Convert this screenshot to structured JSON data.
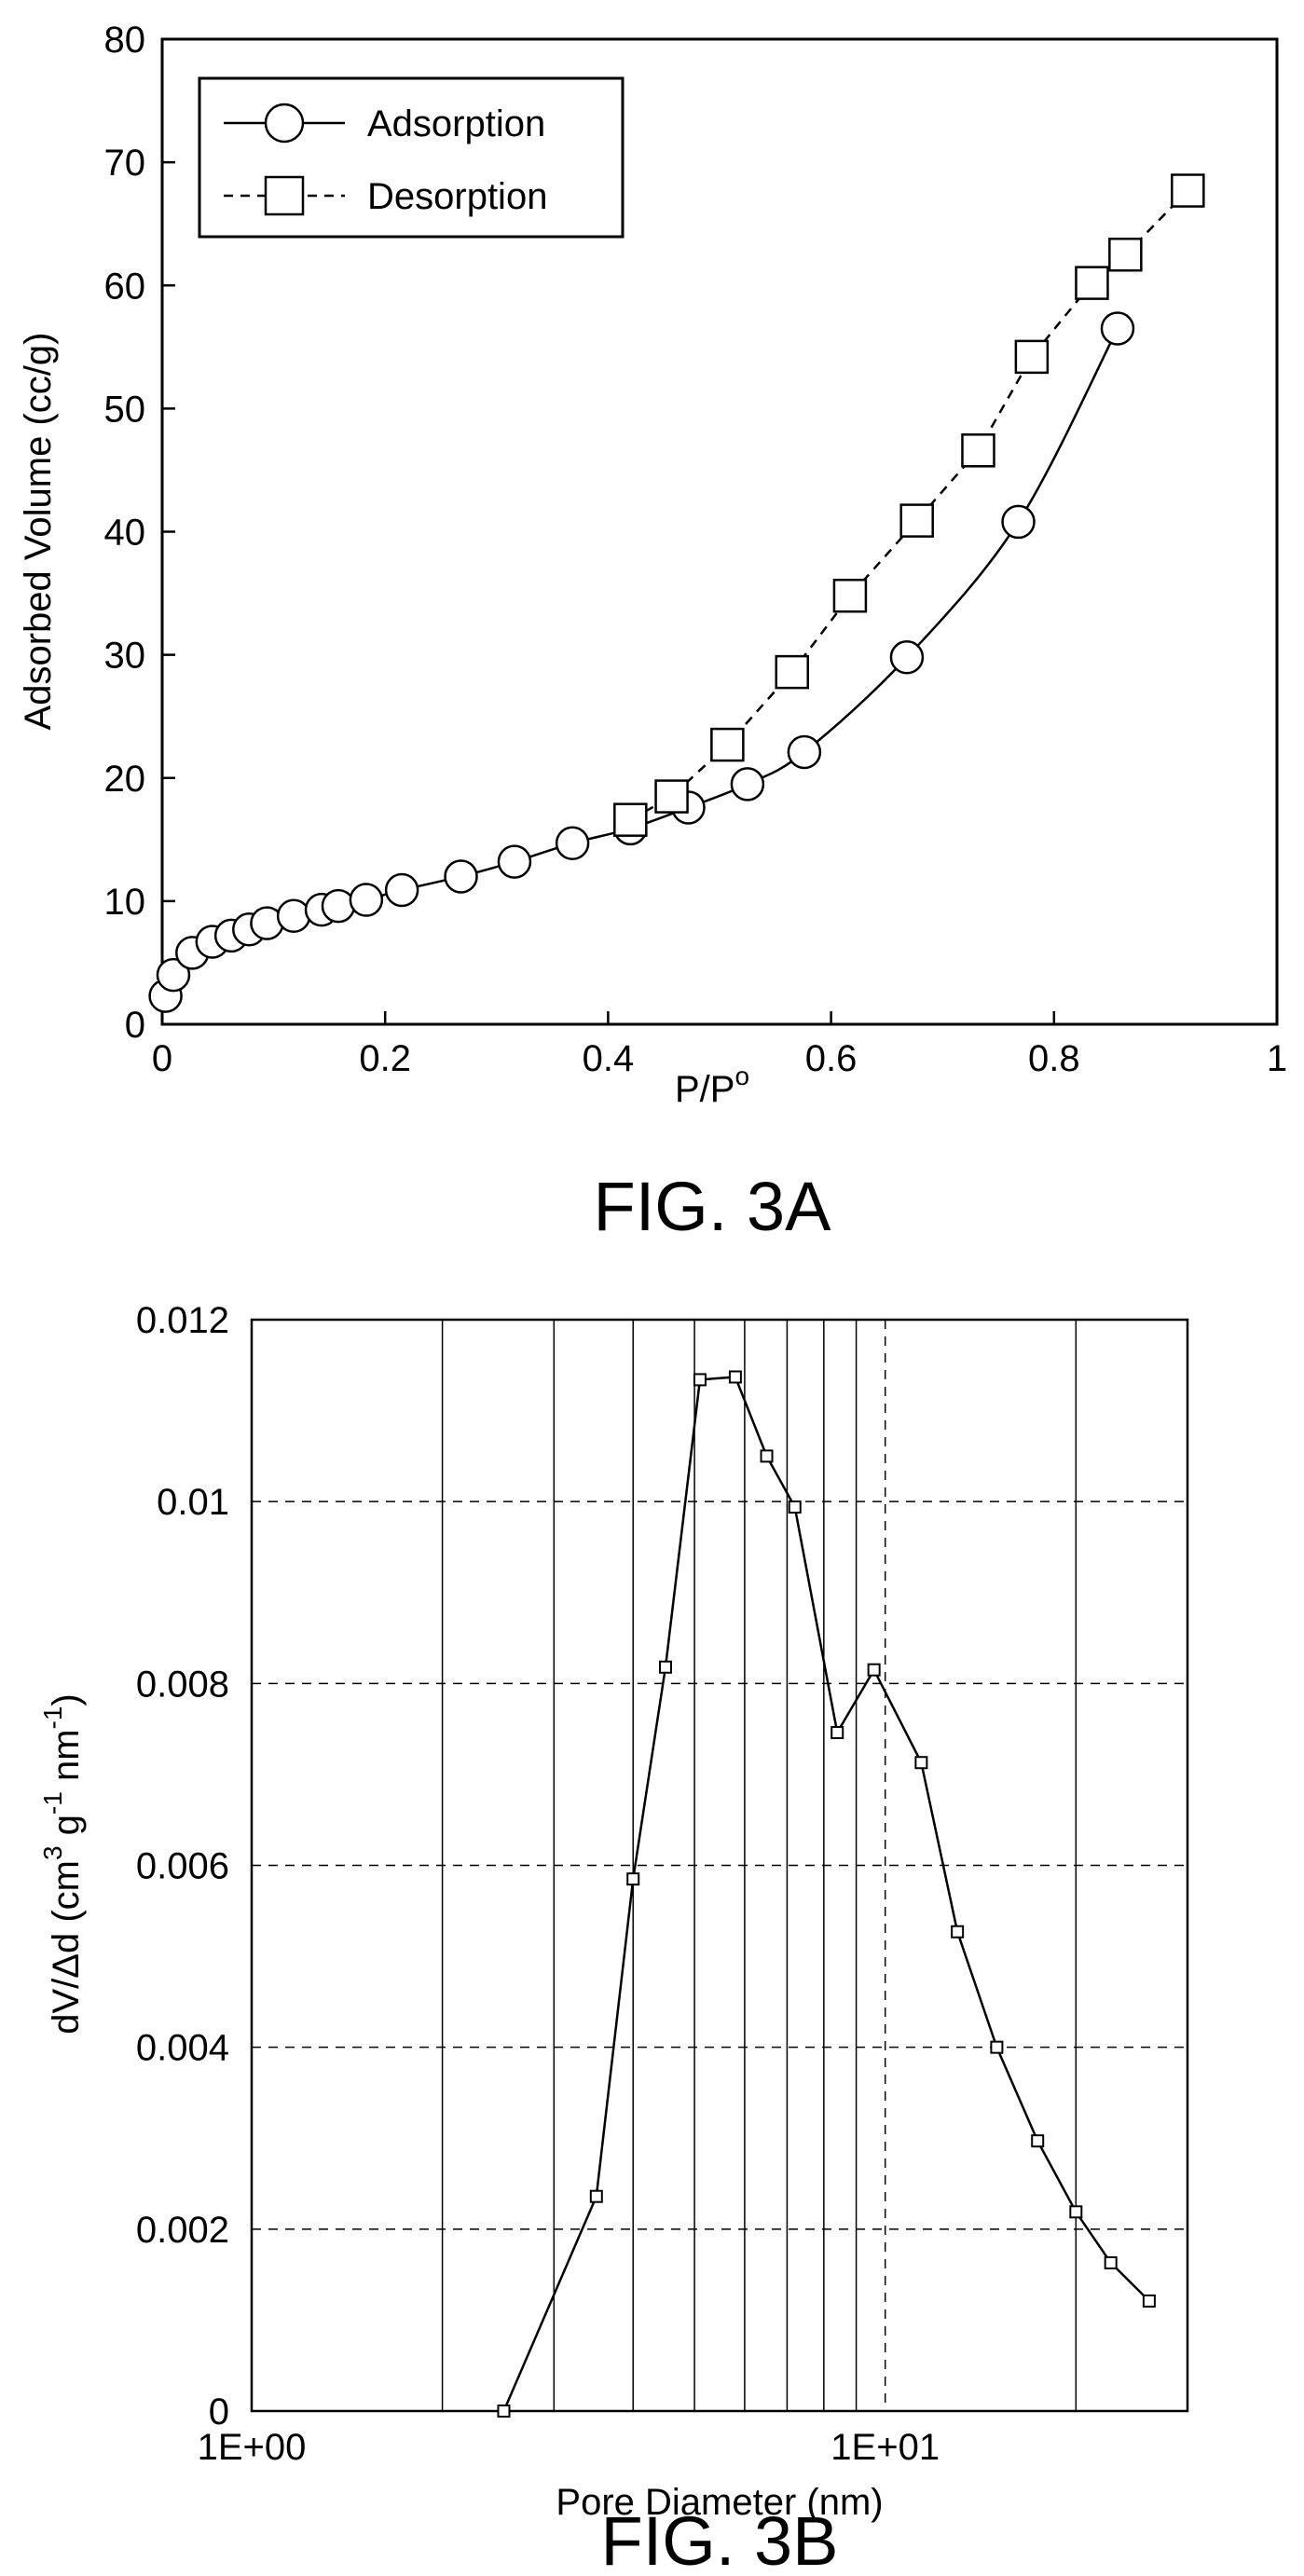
{
  "chart_data": [
    {
      "type": "scatter",
      "figure_label": "FIG. 3A",
      "xlabel_main": "P/P",
      "xlabel_sup": "o",
      "ylabel": "Adsorbed Volume (cc/g)",
      "xlim": [
        0,
        1
      ],
      "ylim": [
        0,
        80
      ],
      "xticks": [
        0,
        0.2,
        0.4,
        0.6,
        0.8,
        1
      ],
      "xtick_labels": [
        "0",
        "0.2",
        "0.4",
        "0.6",
        "0.8",
        "1"
      ],
      "yticks": [
        0,
        10,
        20,
        30,
        40,
        50,
        60,
        70,
        80
      ],
      "ytick_labels": [
        "0",
        "10",
        "20",
        "30",
        "40",
        "50",
        "60",
        "70",
        "80"
      ],
      "grid": false,
      "legend_position": "top-left",
      "series": [
        {
          "name": "Adsorption",
          "marker": "circle",
          "line": "solid",
          "x": [
            0.003,
            0.01,
            0.027,
            0.045,
            0.062,
            0.078,
            0.094,
            0.118,
            0.143,
            0.158,
            0.183,
            0.215,
            0.268,
            0.316,
            0.368,
            0.42,
            0.472,
            0.525,
            0.576,
            0.668,
            0.768,
            0.857
          ],
          "y": [
            2.3,
            4.0,
            5.8,
            6.7,
            7.2,
            7.7,
            8.2,
            8.8,
            9.3,
            9.6,
            10.1,
            10.9,
            12.0,
            13.2,
            14.7,
            15.9,
            17.6,
            19.5,
            22.1,
            29.8,
            40.8,
            56.5
          ]
        },
        {
          "name": "Desorption",
          "marker": "square",
          "line": "dashed",
          "x": [
            0.42,
            0.457,
            0.507,
            0.565,
            0.617,
            0.677,
            0.732,
            0.78,
            0.834,
            0.864,
            0.92
          ],
          "y": [
            16.6,
            18.5,
            22.7,
            28.6,
            34.8,
            40.9,
            46.6,
            54.2,
            60.2,
            62.5,
            67.7
          ]
        }
      ]
    },
    {
      "type": "line",
      "figure_label": "FIG. 3B",
      "xlabel": "Pore Diameter (nm)",
      "ylabel_parts": [
        "dV/Δd (cm",
        "3",
        " g",
        "-1",
        " nm",
        "-1",
        ")"
      ],
      "xscale": "log",
      "xlim": [
        1,
        30
      ],
      "ylim": [
        0,
        0.012
      ],
      "xtick_values": [
        1,
        10
      ],
      "xtick_labels": [
        "1E+00",
        "1E+01"
      ],
      "yticks": [
        0,
        0.002,
        0.004,
        0.006,
        0.008,
        0.01,
        0.012
      ],
      "ytick_labels": [
        "0",
        "0.002",
        "0.004",
        "0.006",
        "0.008",
        "0.01",
        "0.012"
      ],
      "grid": true,
      "grid_style": "dashed horizontal lines; solid vertical lines at log minor ticks",
      "series": [
        {
          "marker": "square",
          "x": [
            2.5,
            3.5,
            4.0,
            4.5,
            5.1,
            5.8,
            6.5,
            7.2,
            8.4,
            9.6,
            11.4,
            13.0,
            15.0,
            17.4,
            20.0,
            22.7,
            26.1
          ],
          "y": [
            0.0,
            0.00236,
            0.00585,
            0.00818,
            0.01134,
            0.01137,
            0.0105,
            0.00994,
            0.00746,
            0.00815,
            0.00713,
            0.00527,
            0.004,
            0.00297,
            0.00219,
            0.00163,
            0.00121
          ]
        }
      ]
    }
  ]
}
